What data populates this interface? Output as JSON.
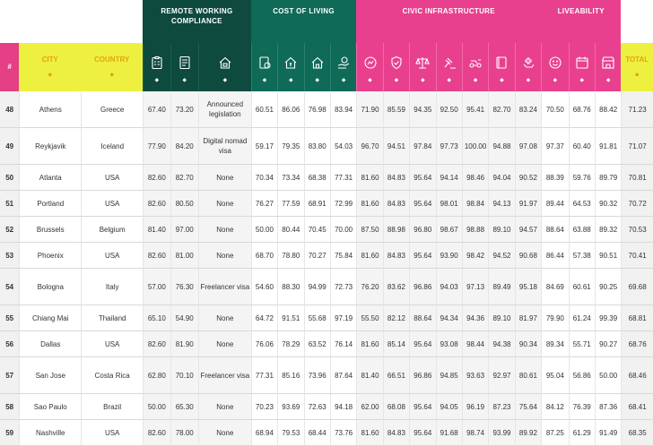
{
  "groups": {
    "remote": "REMOTE WORKING COMPLIANCE",
    "cost": "COST OF LIVING",
    "civic": "CIVIC INFRASTRUCTURE",
    "live": "LIVEABILITY"
  },
  "headers": {
    "rank": "#",
    "city": "CITY",
    "country": "COUNTRY",
    "total": "TOTAL",
    "sort_glyph": "⬥"
  },
  "colors": {
    "pink": "#e8408e",
    "dark_green": "#0e4a3e",
    "teal": "#0f6a58",
    "yellow": "#eef03f"
  },
  "icons": [
    "clipboard-icon",
    "document-icon",
    "home-office-icon",
    "coin-icon",
    "house-dollar-icon",
    "house-icon",
    "hand-coin-icon",
    "signal-icon",
    "shield-icon",
    "scales-icon",
    "gavel-icon",
    "transport-icon",
    "book-icon",
    "healthcare-icon",
    "smile-icon",
    "calendar-icon",
    "store-icon"
  ],
  "rows": [
    {
      "rank": "48",
      "city": "Athens",
      "country": "Greece",
      "v": [
        "67.40",
        "73.20",
        "Announced legislation",
        "60.51",
        "86.06",
        "76.98",
        "83.94",
        "71.90",
        "85.59",
        "94.35",
        "92.50",
        "95.41",
        "82.70",
        "83.24",
        "70.50",
        "68.76",
        "88.42"
      ],
      "total": "71.23",
      "tall": true
    },
    {
      "rank": "49",
      "city": "Reykjavik",
      "country": "Iceland",
      "v": [
        "77.90",
        "84.20",
        "Digital nomad visa",
        "59.17",
        "79.35",
        "83.80",
        "54.03",
        "96.70",
        "94.51",
        "97.84",
        "97.73",
        "100.00",
        "94.88",
        "97.08",
        "97.37",
        "60.40",
        "91.81"
      ],
      "total": "71.07",
      "tall": true
    },
    {
      "rank": "50",
      "city": "Atlanta",
      "country": "USA",
      "v": [
        "82.60",
        "82.70",
        "None",
        "70.34",
        "73.34",
        "68.38",
        "77.31",
        "81.60",
        "84.83",
        "95.64",
        "94.14",
        "98.46",
        "94.04",
        "90.52",
        "88.39",
        "59.76",
        "89.79"
      ],
      "total": "70.81",
      "tall": false
    },
    {
      "rank": "51",
      "city": "Portland",
      "country": "USA",
      "v": [
        "82.60",
        "80.50",
        "None",
        "76.27",
        "77.59",
        "68.91",
        "72.99",
        "81.60",
        "84.83",
        "95.64",
        "98.01",
        "98.84",
        "94.13",
        "91.97",
        "89.44",
        "64.53",
        "90.32"
      ],
      "total": "70.72",
      "tall": false
    },
    {
      "rank": "52",
      "city": "Brussels",
      "country": "Belgium",
      "v": [
        "81.40",
        "97.00",
        "None",
        "50.00",
        "80.44",
        "70.45",
        "70.00",
        "87.50",
        "88.98",
        "96.80",
        "98.67",
        "98.88",
        "89.10",
        "94.57",
        "88.64",
        "63.88",
        "89.32"
      ],
      "total": "70.53",
      "tall": false
    },
    {
      "rank": "53",
      "city": "Phoenix",
      "country": "USA",
      "v": [
        "82.60",
        "81.00",
        "None",
        "68.70",
        "78.80",
        "70.27",
        "75.84",
        "81.60",
        "84.83",
        "95.64",
        "93.90",
        "98.42",
        "94.52",
        "90.68",
        "86.44",
        "57.38",
        "90.51"
      ],
      "total": "70.41",
      "tall": false
    },
    {
      "rank": "54",
      "city": "Bologna",
      "country": "Italy",
      "v": [
        "57.00",
        "76.30",
        "Freelancer visa",
        "54.60",
        "88.30",
        "94.99",
        "72.73",
        "76.20",
        "83.62",
        "96.86",
        "94.03",
        "97.13",
        "89.49",
        "95.18",
        "84.69",
        "60.61",
        "90.25"
      ],
      "total": "69.68",
      "tall": true
    },
    {
      "rank": "55",
      "city": "Chiang Mai",
      "country": "Thailand",
      "v": [
        "65.10",
        "54.90",
        "None",
        "64.72",
        "91.51",
        "55.68",
        "97.19",
        "55.50",
        "82.12",
        "88.64",
        "94.34",
        "94.36",
        "89.10",
        "81.97",
        "79.90",
        "61.24",
        "99.39"
      ],
      "total": "68.81",
      "tall": false
    },
    {
      "rank": "56",
      "city": "Dallas",
      "country": "USA",
      "v": [
        "82.60",
        "81.90",
        "None",
        "76.06",
        "78.29",
        "63.52",
        "76.14",
        "81.60",
        "85.14",
        "95.64",
        "93.08",
        "98.44",
        "94.38",
        "90.34",
        "89.34",
        "55.71",
        "90.27"
      ],
      "total": "68.76",
      "tall": false
    },
    {
      "rank": "57",
      "city": "San Jose",
      "country": "Costa Rica",
      "v": [
        "62.80",
        "70.10",
        "Freelancer visa",
        "77.31",
        "85.16",
        "73.96",
        "87.64",
        "81.40",
        "66.51",
        "96.86",
        "94.85",
        "93.63",
        "92.97",
        "80.61",
        "95.04",
        "56.86",
        "50.00"
      ],
      "total": "68.46",
      "tall": true
    },
    {
      "rank": "58",
      "city": "Sao Paulo",
      "country": "Brazil",
      "v": [
        "50.00",
        "65.30",
        "None",
        "70.23",
        "93.69",
        "72.63",
        "94.18",
        "62.00",
        "68.08",
        "95.64",
        "94.05",
        "96.19",
        "87.23",
        "75.64",
        "84.12",
        "76.39",
        "87.36"
      ],
      "total": "68.41",
      "tall": false
    },
    {
      "rank": "59",
      "city": "Nashville",
      "country": "USA",
      "v": [
        "82.60",
        "78.00",
        "None",
        "68.94",
        "79.53",
        "68.44",
        "73.76",
        "81.60",
        "84.83",
        "95.64",
        "91.68",
        "98.74",
        "93.99",
        "89.92",
        "87.25",
        "61.29",
        "91.49"
      ],
      "total": "68.35",
      "tall": false
    }
  ]
}
